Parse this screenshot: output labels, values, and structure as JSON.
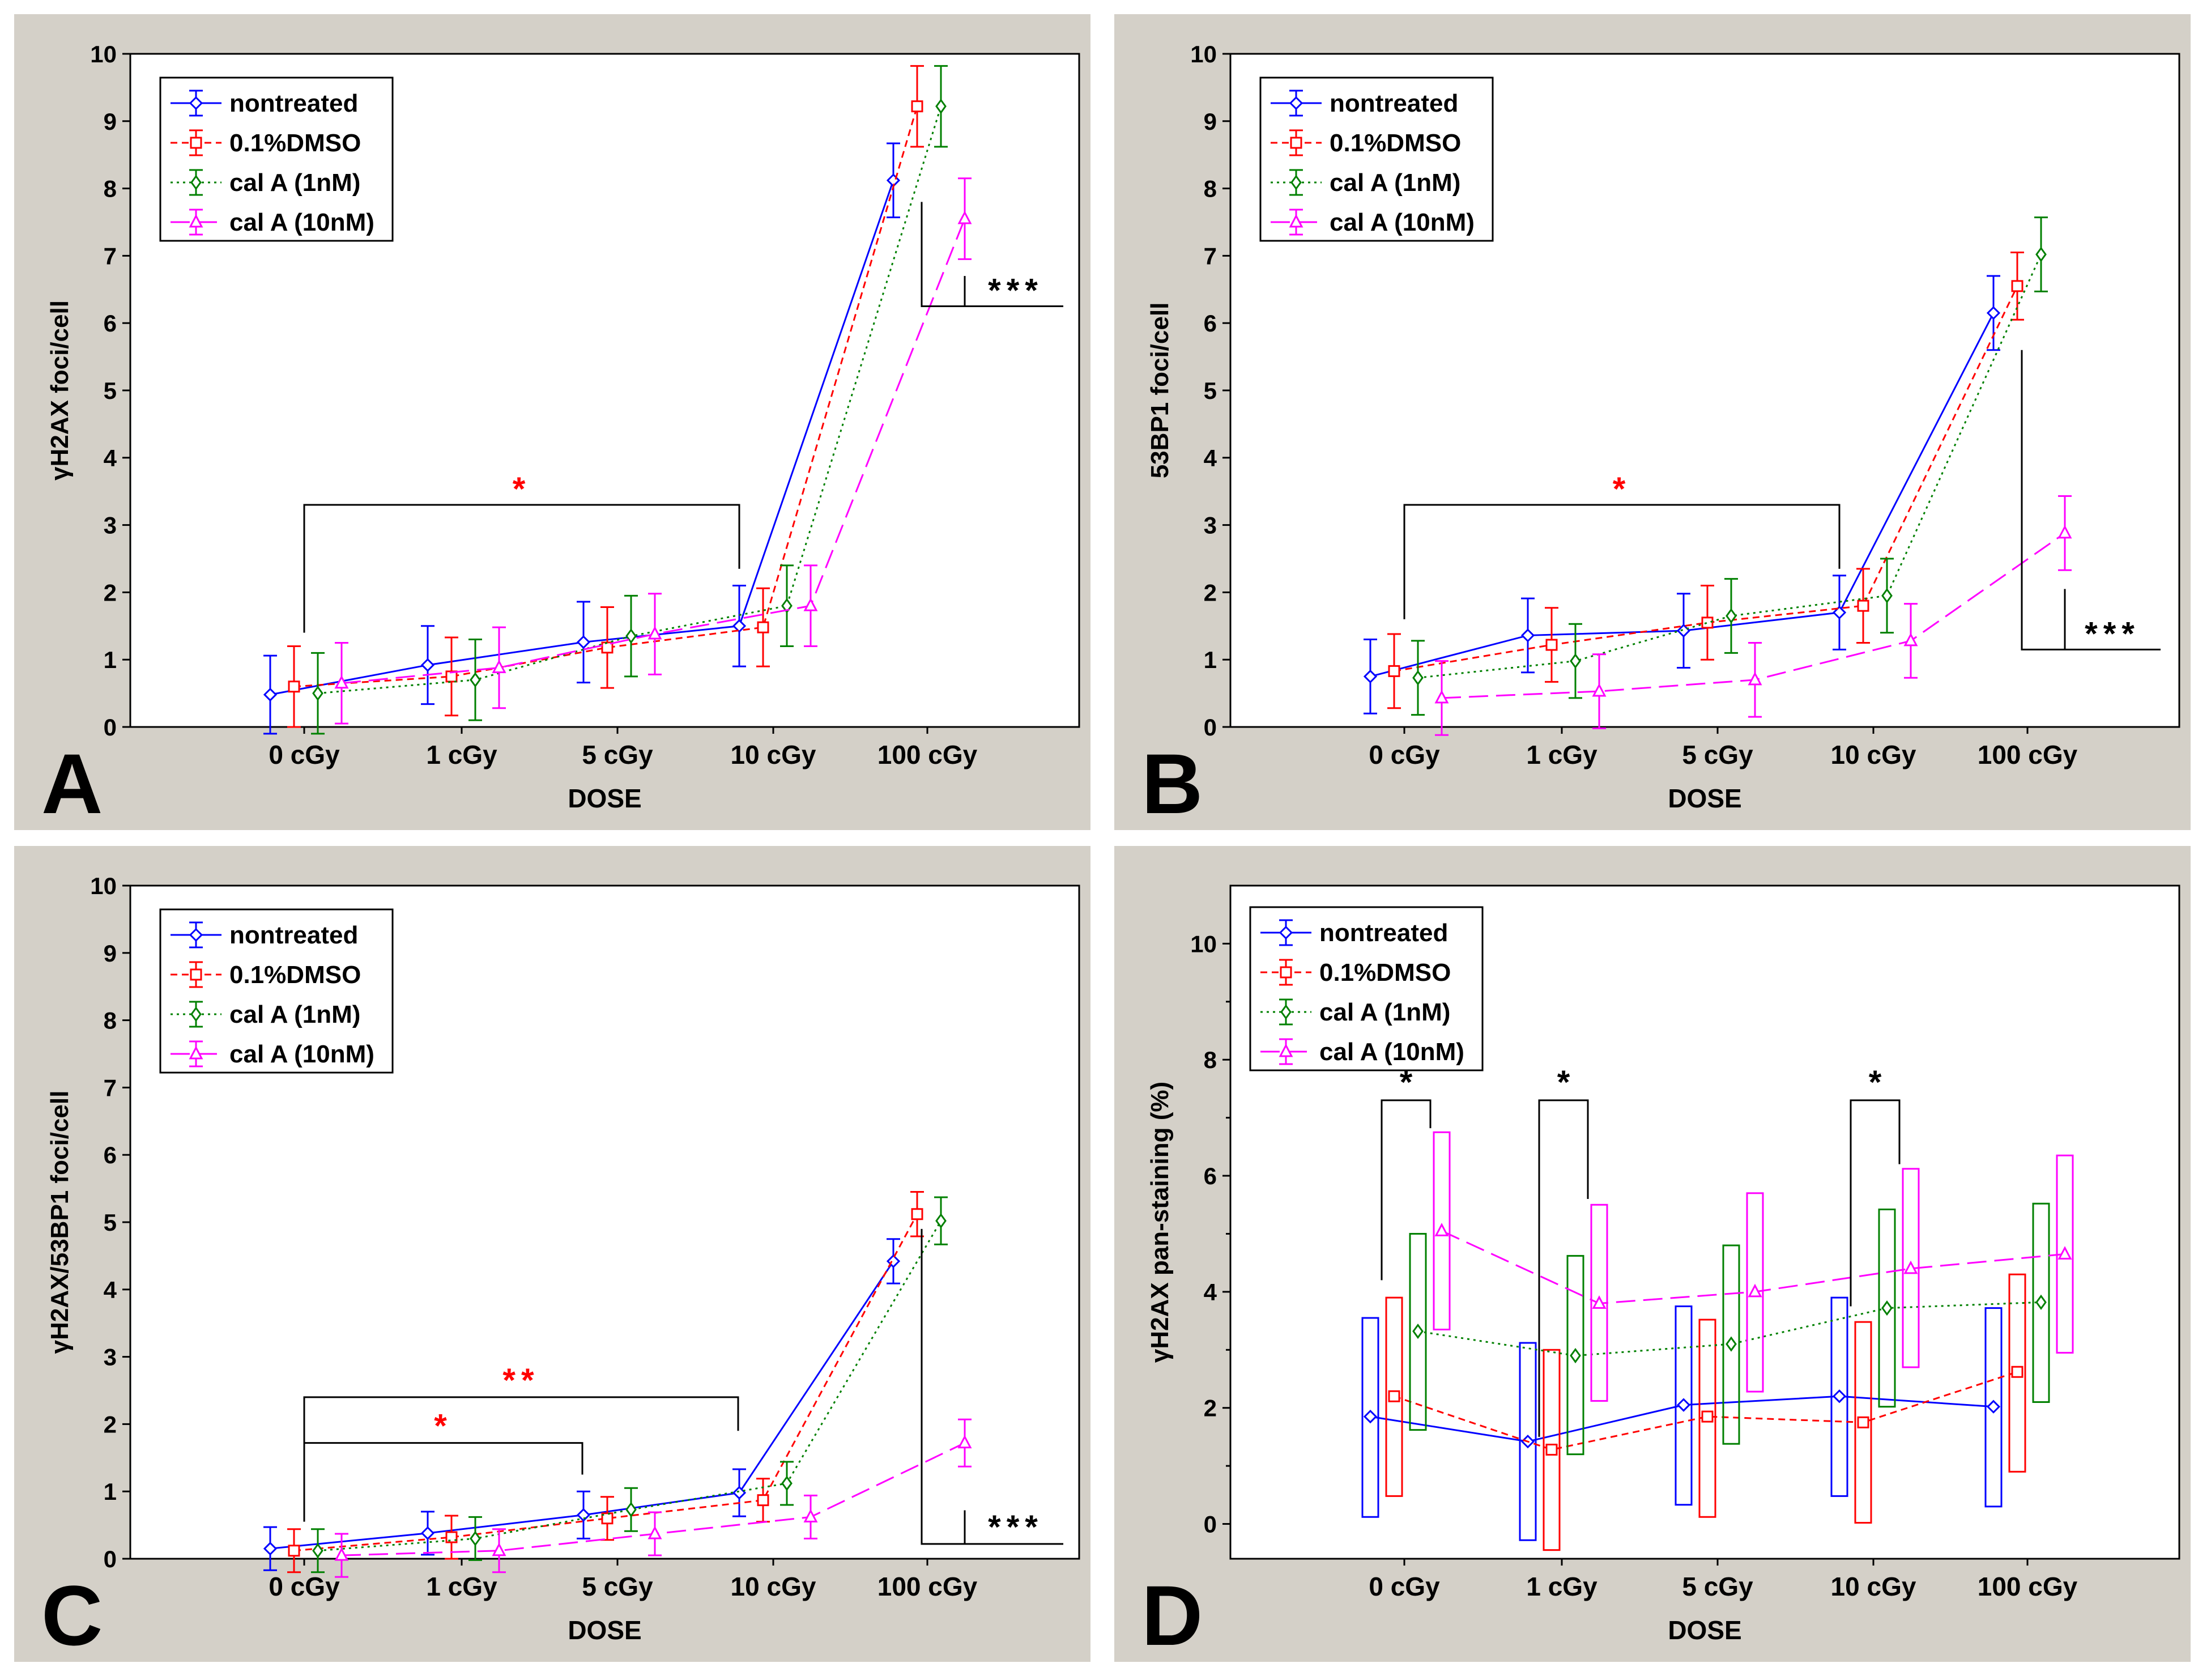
{
  "colors": {
    "panel_bg": "#d4d0c8",
    "plot_bg": "#ffffff",
    "nontreated": "#0000ff",
    "dmso": "#ff0000",
    "cal1": "#008000",
    "cal10": "#ff00ff",
    "sig_red": "#ff0000",
    "sig_black": "#000000"
  },
  "legend": [
    "nontreated",
    "0.1%DMSO",
    "cal A (1nM)",
    "cal A (10nM)"
  ],
  "chart_data": [
    {
      "panel_label": "A",
      "type": "line",
      "xlabel": "DOSE",
      "ylabel": "γH2AX foci/cell",
      "categories": [
        "0 cGy",
        "1 cGy",
        "5 cGy",
        "10 cGy",
        "100 cGy"
      ],
      "ylim": [
        0,
        10
      ],
      "yticks": [
        "0",
        "1",
        "2",
        "3",
        "4",
        "5",
        "6",
        "7",
        "8",
        "9",
        "10"
      ],
      "series": [
        {
          "name": "nontreated",
          "values": [
            0.48,
            0.92,
            1.26,
            1.5,
            8.12
          ],
          "err": [
            0.58,
            0.58,
            0.6,
            0.6,
            0.55
          ]
        },
        {
          "name": "0.1%DMSO",
          "values": [
            0.6,
            0.75,
            1.18,
            1.48,
            9.22
          ],
          "err": [
            0.6,
            0.58,
            0.6,
            0.58,
            0.6
          ]
        },
        {
          "name": "cal A (1nM)",
          "values": [
            0.5,
            0.7,
            1.35,
            1.8,
            9.22
          ],
          "err": [
            0.6,
            0.6,
            0.6,
            0.6,
            0.6
          ]
        },
        {
          "name": "cal A (10nM)",
          "values": [
            0.65,
            0.88,
            1.38,
            1.8,
            7.55
          ],
          "err": [
            0.6,
            0.6,
            0.6,
            0.6,
            0.6
          ]
        }
      ],
      "annotations": [
        {
          "text": "*",
          "from": "0 cGy",
          "to": "10 cGy",
          "color": "red"
        },
        {
          "text": "***",
          "at": "100 cGy",
          "color": "black"
        }
      ]
    },
    {
      "panel_label": "B",
      "type": "line",
      "xlabel": "DOSE",
      "ylabel": "53BP1 foci/cell",
      "categories": [
        "0 cGy",
        "1 cGy",
        "5 cGy",
        "10 cGy",
        "100 cGy"
      ],
      "ylim": [
        0,
        10
      ],
      "yticks": [
        "0",
        "1",
        "2",
        "3",
        "4",
        "5",
        "6",
        "7",
        "8",
        "9",
        "10"
      ],
      "series": [
        {
          "name": "nontreated",
          "values": [
            0.75,
            1.36,
            1.43,
            1.7,
            6.15
          ],
          "err": [
            0.55,
            0.55,
            0.55,
            0.55,
            0.55
          ]
        },
        {
          "name": "0.1%DMSO",
          "values": [
            0.83,
            1.22,
            1.55,
            1.8,
            6.55
          ],
          "err": [
            0.55,
            0.55,
            0.55,
            0.55,
            0.5
          ]
        },
        {
          "name": "cal A (1nM)",
          "values": [
            0.73,
            0.98,
            1.65,
            1.95,
            7.02
          ],
          "err": [
            0.55,
            0.55,
            0.55,
            0.55,
            0.55
          ]
        },
        {
          "name": "cal A (10nM)",
          "values": [
            0.43,
            0.53,
            0.7,
            1.28,
            2.88
          ],
          "err": [
            0.55,
            0.55,
            0.55,
            0.55,
            0.55
          ]
        }
      ],
      "annotations": [
        {
          "text": "*",
          "from": "0 cGy",
          "to": "10 cGy",
          "color": "red"
        },
        {
          "text": "***",
          "at": "100 cGy",
          "color": "black"
        }
      ]
    },
    {
      "panel_label": "C",
      "type": "line",
      "xlabel": "DOSE",
      "ylabel": "γH2AX/53BP1 foci/cell",
      "categories": [
        "0 cGy",
        "1 cGy",
        "5 cGy",
        "10 cGy",
        "100 cGy"
      ],
      "ylim": [
        0,
        10
      ],
      "yticks": [
        "0",
        "1",
        "2",
        "3",
        "4",
        "5",
        "6",
        "7",
        "8",
        "9",
        "10"
      ],
      "series": [
        {
          "name": "nontreated",
          "values": [
            0.15,
            0.38,
            0.65,
            0.98,
            4.42
          ],
          "err": [
            0.32,
            0.32,
            0.35,
            0.35,
            0.33
          ]
        },
        {
          "name": "0.1%DMSO",
          "values": [
            0.12,
            0.32,
            0.6,
            0.87,
            5.12
          ],
          "err": [
            0.32,
            0.32,
            0.32,
            0.32,
            0.33
          ]
        },
        {
          "name": "cal A (1nM)",
          "values": [
            0.12,
            0.3,
            0.73,
            1.12,
            5.02
          ],
          "err": [
            0.32,
            0.32,
            0.32,
            0.32,
            0.35
          ]
        },
        {
          "name": "cal A (10nM)",
          "values": [
            0.05,
            0.12,
            0.37,
            0.62,
            1.72
          ],
          "err": [
            0.32,
            0.32,
            0.32,
            0.32,
            0.35
          ]
        }
      ],
      "annotations": [
        {
          "text": "**",
          "from": "0 cGy",
          "to": "10 cGy",
          "color": "red"
        },
        {
          "text": "*",
          "from": "0 cGy",
          "to": "5 cGy",
          "color": "red"
        },
        {
          "text": "***",
          "at": "100 cGy",
          "color": "black"
        }
      ]
    },
    {
      "panel_label": "D",
      "type": "line",
      "xlabel": "DOSE",
      "ylabel": "γH2AX pan-staining (%)",
      "categories": [
        "0 cGy",
        "1 cGy",
        "5 cGy",
        "10 cGy",
        "100 cGy"
      ],
      "ylim": [
        -0.6,
        11
      ],
      "yticks": [
        "0",
        "2",
        "4",
        "6",
        "8",
        "10"
      ],
      "series": [
        {
          "name": "nontreated",
          "values": [
            1.85,
            1.42,
            2.05,
            2.2,
            2.02
          ],
          "box": [
            [
              0.12,
              3.55
            ],
            [
              -0.28,
              3.12
            ],
            [
              0.33,
              3.75
            ],
            [
              0.48,
              3.9
            ],
            [
              0.3,
              3.72
            ]
          ]
        },
        {
          "name": "0.1%DMSO",
          "values": [
            2.2,
            1.28,
            1.85,
            1.75,
            2.62
          ],
          "box": [
            [
              0.48,
              3.9
            ],
            [
              -0.45,
              3.0
            ],
            [
              0.12,
              3.52
            ],
            [
              0.02,
              3.48
            ],
            [
              0.9,
              4.3
            ]
          ]
        },
        {
          "name": "cal A (1nM)",
          "values": [
            3.32,
            2.9,
            3.1,
            3.72,
            3.82
          ],
          "box": [
            [
              1.62,
              5.0
            ],
            [
              1.2,
              4.62
            ],
            [
              1.38,
              4.8
            ],
            [
              2.02,
              5.42
            ],
            [
              2.1,
              5.52
            ]
          ]
        },
        {
          "name": "cal A (10nM)",
          "values": [
            5.05,
            3.8,
            4.0,
            4.4,
            4.65
          ],
          "box": [
            [
              3.35,
              6.75
            ],
            [
              2.12,
              5.5
            ],
            [
              2.28,
              5.7
            ],
            [
              2.7,
              6.12
            ],
            [
              2.95,
              6.35
            ]
          ]
        }
      ],
      "annotations": [
        {
          "text": "*",
          "at": "0 cGy",
          "color": "black"
        },
        {
          "text": "*",
          "at": "1 cGy",
          "color": "black"
        },
        {
          "text": "*",
          "at": "10 cGy",
          "color": "black"
        }
      ]
    }
  ]
}
